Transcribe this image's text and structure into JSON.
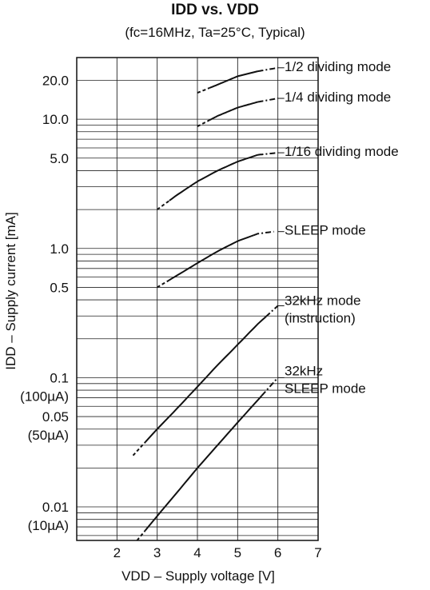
{
  "chart_data": {
    "type": "line",
    "title": "IDD vs. VDD",
    "subtitle": "(fc=16MHz, Ta=25°C, Typical)",
    "xlabel": "VDD – Supply voltage  [V]",
    "ylabel": "IDD – Supply current  [mA]",
    "x_scale": "linear",
    "y_scale": "log",
    "xlim": [
      1,
      7
    ],
    "ylim": [
      0.0055,
      30
    ],
    "x_ticks": [
      {
        "value": 2,
        "label": "2"
      },
      {
        "value": 3,
        "label": "3"
      },
      {
        "value": 4,
        "label": "4"
      },
      {
        "value": 5,
        "label": "5"
      },
      {
        "value": 6,
        "label": "6"
      },
      {
        "value": 7,
        "label": "7"
      }
    ],
    "y_ticks": [
      {
        "value": 20,
        "label": "20.0",
        "sub": ""
      },
      {
        "value": 10,
        "label": "10.0",
        "sub": ""
      },
      {
        "value": 5,
        "label": "5.0",
        "sub": ""
      },
      {
        "value": 1,
        "label": "1.0",
        "sub": ""
      },
      {
        "value": 0.5,
        "label": "0.5",
        "sub": ""
      },
      {
        "value": 0.1,
        "label": "0.1",
        "sub": "(100µA)"
      },
      {
        "value": 0.05,
        "label": "0.05",
        "sub": "(50µA)"
      },
      {
        "value": 0.01,
        "label": "0.01",
        "sub": "(10µA)"
      }
    ],
    "grid": true,
    "series": [
      {
        "name": "1/2 dividing mode",
        "label_lines": [
          "1/2 dividing mode"
        ],
        "x": [
          4.0,
          4.5,
          5.0,
          5.5,
          6.0
        ],
        "y": [
          16,
          18.5,
          21.5,
          23.5,
          25
        ],
        "dash_start": [
          4.0,
          4.3
        ],
        "dash_end": [
          5.5,
          6.0
        ]
      },
      {
        "name": "1/4 dividing mode",
        "label_lines": [
          "1/4 dividing mode"
        ],
        "x": [
          4.0,
          4.5,
          5.0,
          5.5,
          6.0
        ],
        "y": [
          8.8,
          10.6,
          12.3,
          13.6,
          14.5
        ],
        "dash_start": [
          4.0,
          4.3
        ],
        "dash_end": [
          5.5,
          6.0
        ]
      },
      {
        "name": "1/16 dividing mode",
        "label_lines": [
          "1/16 dividing mode"
        ],
        "x": [
          3.0,
          3.5,
          4.0,
          4.5,
          5.0,
          5.5,
          6.0
        ],
        "y": [
          2.0,
          2.6,
          3.3,
          4.0,
          4.7,
          5.3,
          5.5
        ],
        "dash_start": [
          3.0,
          3.3
        ],
        "dash_end": [
          5.5,
          6.0
        ]
      },
      {
        "name": "SLEEP mode",
        "label_lines": [
          "SLEEP mode"
        ],
        "x": [
          3.0,
          3.5,
          4.0,
          4.5,
          5.0,
          5.5,
          5.9
        ],
        "y": [
          0.5,
          0.62,
          0.77,
          0.95,
          1.14,
          1.3,
          1.35
        ],
        "dash_start": [
          3.0,
          3.3
        ],
        "dash_end": [
          5.4,
          5.9
        ]
      },
      {
        "name": "32kHz mode (instruction)",
        "label_lines": [
          "32kHz mode",
          "(instruction)"
        ],
        "x": [
          2.4,
          3.0,
          3.5,
          4.0,
          4.5,
          5.0,
          5.5,
          6.0
        ],
        "y": [
          0.025,
          0.04,
          0.058,
          0.085,
          0.125,
          0.18,
          0.26,
          0.36
        ],
        "dash_start": [
          2.4,
          2.7
        ],
        "dash_end": [
          5.7,
          6.0
        ]
      },
      {
        "name": "32kHz SLEEP mode",
        "label_lines": [
          "32kHz",
          "SLEEP mode"
        ],
        "x": [
          2.5,
          3.0,
          3.5,
          4.0,
          4.5,
          5.0,
          5.5,
          6.0
        ],
        "y": [
          0.0055,
          0.0085,
          0.013,
          0.02,
          0.03,
          0.045,
          0.067,
          0.1
        ],
        "dash_start": [
          2.5,
          2.7
        ],
        "dash_end": [
          5.6,
          6.0
        ]
      }
    ]
  }
}
